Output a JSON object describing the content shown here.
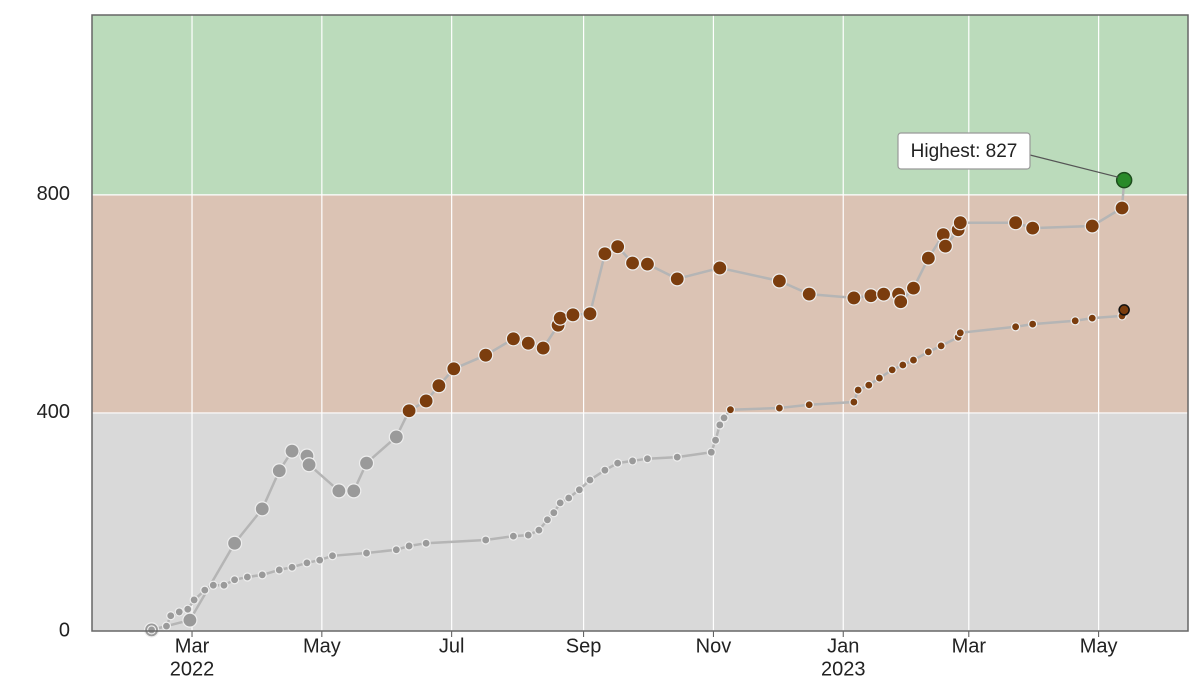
{
  "chart_data": {
    "type": "line",
    "annotation": "Highest: 827",
    "xlim": [
      "2022-01-13",
      "2023-06-12"
    ],
    "ylim": [
      0,
      1130
    ],
    "yticks": [
      0,
      400,
      800
    ],
    "xticks": [
      {
        "value": "2022-03-01",
        "label": "Mar",
        "sublabel": "2022"
      },
      {
        "value": "2022-05-01",
        "label": "May"
      },
      {
        "value": "2022-07-01",
        "label": "Jul"
      },
      {
        "value": "2022-09-01",
        "label": "Sep"
      },
      {
        "value": "2022-11-01",
        "label": "Nov"
      },
      {
        "value": "2023-01-01",
        "label": "Jan",
        "sublabel": "2023"
      },
      {
        "value": "2023-03-01",
        "label": "Mar"
      },
      {
        "value": "2023-05-01",
        "label": "May"
      }
    ],
    "grid": true,
    "bands": [
      {
        "from": 0,
        "to": 400,
        "color": "#d9d9d9",
        "marker_color": "#9a9a9a"
      },
      {
        "from": 400,
        "to": 800,
        "color": "#dbc3b4",
        "marker_color": "#7b3d0e"
      },
      {
        "from": 800,
        "to": 1130,
        "color": "#bbdbbb",
        "marker_color": "#2a8a2a"
      }
    ],
    "line_color": "#b5b5b5",
    "series": [
      {
        "x": [
          "2022-02-10",
          "2022-02-28",
          "2022-03-21",
          "2022-04-03",
          "2022-04-11",
          "2022-04-17",
          "2022-04-24",
          "2022-04-25",
          "2022-05-09",
          "2022-05-16",
          "2022-05-22",
          "2022-06-05",
          "2022-06-11",
          "2022-06-19",
          "2022-06-25",
          "2022-07-02",
          "2022-07-17",
          "2022-07-30",
          "2022-08-06",
          "2022-08-13",
          "2022-08-20",
          "2022-08-21",
          "2022-08-27",
          "2022-09-04",
          "2022-09-11",
          "2022-09-17",
          "2022-09-24",
          "2022-10-01",
          "2022-10-15",
          "2022-11-04",
          "2022-12-02",
          "2022-12-16",
          "2023-01-06",
          "2023-01-14",
          "2023-01-20",
          "2023-01-27",
          "2023-01-28",
          "2023-02-03",
          "2023-02-10",
          "2023-02-17",
          "2023-02-18",
          "2023-02-24",
          "2023-02-25",
          "2023-03-23",
          "2023-03-31",
          "2023-04-28",
          "2023-05-12",
          "2023-05-13"
        ],
        "values": [
          2,
          20,
          161,
          224,
          294,
          330,
          321,
          305,
          257,
          257,
          308,
          356,
          404,
          422,
          450,
          481,
          506,
          536,
          528,
          519,
          561,
          574,
          580,
          582,
          692,
          705,
          675,
          673,
          646,
          666,
          642,
          618,
          611,
          615,
          618,
          618,
          604,
          629,
          684,
          727,
          706,
          736,
          749,
          749,
          739,
          743,
          776,
          827
        ]
      },
      {
        "x": [
          "2022-02-10",
          "2022-02-17",
          "2022-02-19",
          "2022-02-23",
          "2022-02-27",
          "2022-03-02",
          "2022-03-07",
          "2022-03-11",
          "2022-03-16",
          "2022-03-21",
          "2022-03-27",
          "2022-04-03",
          "2022-04-11",
          "2022-04-17",
          "2022-04-24",
          "2022-04-30",
          "2022-05-06",
          "2022-05-22",
          "2022-06-05",
          "2022-06-11",
          "2022-06-19",
          "2022-07-17",
          "2022-07-30",
          "2022-08-06",
          "2022-08-11",
          "2022-08-15",
          "2022-08-18",
          "2022-08-21",
          "2022-08-25",
          "2022-08-30",
          "2022-09-04",
          "2022-09-11",
          "2022-09-17",
          "2022-09-24",
          "2022-10-01",
          "2022-10-15",
          "2022-10-31",
          "2022-11-02",
          "2022-11-04",
          "2022-11-06",
          "2022-11-09",
          "2022-12-02",
          "2022-12-16",
          "2023-01-06",
          "2023-01-08",
          "2023-01-13",
          "2023-01-18",
          "2023-01-24",
          "2023-01-29",
          "2023-02-03",
          "2023-02-10",
          "2023-02-16",
          "2023-02-24",
          "2023-02-25",
          "2023-03-23",
          "2023-03-31",
          "2023-04-20",
          "2023-04-28",
          "2023-05-12"
        ],
        "values": [
          2,
          9,
          28,
          35,
          40,
          57,
          75,
          84,
          84,
          94,
          99,
          103,
          112,
          117,
          125,
          130,
          138,
          143,
          149,
          156,
          161,
          167,
          174,
          176,
          185,
          204,
          217,
          235,
          244,
          259,
          277,
          295,
          308,
          312,
          316,
          319,
          328,
          350,
          378,
          391,
          406,
          409,
          415,
          420,
          442,
          451,
          464,
          479,
          488,
          497,
          512,
          523,
          539,
          547,
          558,
          563,
          569,
          574,
          578
        ]
      }
    ],
    "last_point": {
      "x": "2023-05-13",
      "value": 589
    }
  }
}
